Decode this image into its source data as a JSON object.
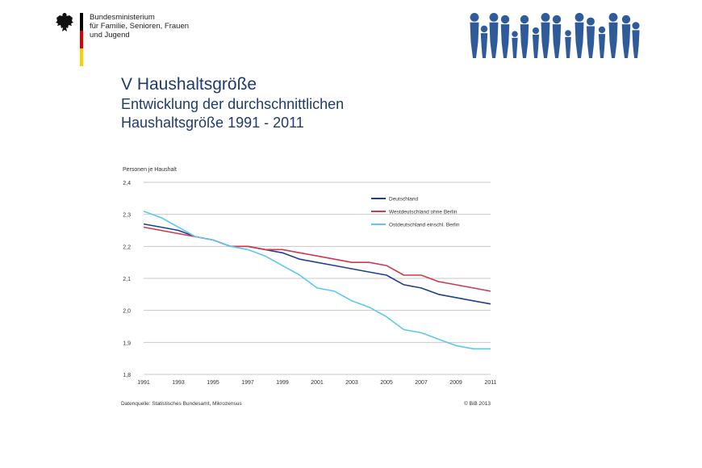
{
  "header": {
    "ministry_lines": [
      "Bundesministerium",
      "für Familie, Senioren, Frauen",
      "und Jugend"
    ],
    "flag_colors": [
      "#000000",
      "#dd0000",
      "#ffce00"
    ],
    "logo_icon": "federal-eagle-icon",
    "banner_icon": "family-silhouettes-icon",
    "banner_color": "#2f5b9a"
  },
  "slide": {
    "title": "V Haushaltsgröße",
    "subtitle_line1": "Entwicklung der durchschnittlichen",
    "subtitle_line2": "Haushaltsgröße 1991 - 2011"
  },
  "chart_data": {
    "type": "line",
    "ylabel": "Personen je Haushalt",
    "ylim": [
      1.8,
      2.4
    ],
    "yticks": [
      "2,4",
      "2,3",
      "2,2",
      "2,1",
      "2,0",
      "1,9",
      "1,8"
    ],
    "yticks_values": [
      2.4,
      2.3,
      2.2,
      2.1,
      2.0,
      1.9,
      1.8
    ],
    "x": [
      1991,
      1992,
      1993,
      1994,
      1995,
      1996,
      1997,
      1998,
      1999,
      2000,
      2001,
      2002,
      2003,
      2004,
      2005,
      2006,
      2007,
      2008,
      2009,
      2010,
      2011
    ],
    "xticks": [
      "1991",
      "1993",
      "1995",
      "1997",
      "1999",
      "2001",
      "2003",
      "2005",
      "2007",
      "2009",
      "2011"
    ],
    "grid": true,
    "legend_position": "top-right",
    "series": [
      {
        "name": "Deutschland",
        "color": "#1f3f8f",
        "values": [
          2.27,
          2.26,
          2.25,
          2.23,
          2.22,
          2.2,
          2.2,
          2.19,
          2.18,
          2.16,
          2.15,
          2.14,
          2.13,
          2.12,
          2.11,
          2.08,
          2.07,
          2.05,
          2.04,
          2.03,
          2.02
        ]
      },
      {
        "name": "Westdeutschland ohne Berlin",
        "color": "#d0384f",
        "values": [
          2.26,
          2.25,
          2.24,
          2.23,
          2.22,
          2.2,
          2.2,
          2.19,
          2.19,
          2.18,
          2.17,
          2.16,
          2.15,
          2.15,
          2.14,
          2.11,
          2.11,
          2.09,
          2.08,
          2.07,
          2.06
        ]
      },
      {
        "name": "Ostdeutschland einschl. Berlin",
        "color": "#5bc8ef",
        "values": [
          2.31,
          2.29,
          2.26,
          2.23,
          2.22,
          2.2,
          2.19,
          2.17,
          2.14,
          2.11,
          2.07,
          2.06,
          2.03,
          2.01,
          1.98,
          1.94,
          1.93,
          1.91,
          1.89,
          1.88,
          1.88
        ]
      }
    ],
    "source_note": "Datenquelle: Statistisches Bundesamt, Mikrozensus",
    "copyright": "© BiB 2013"
  }
}
